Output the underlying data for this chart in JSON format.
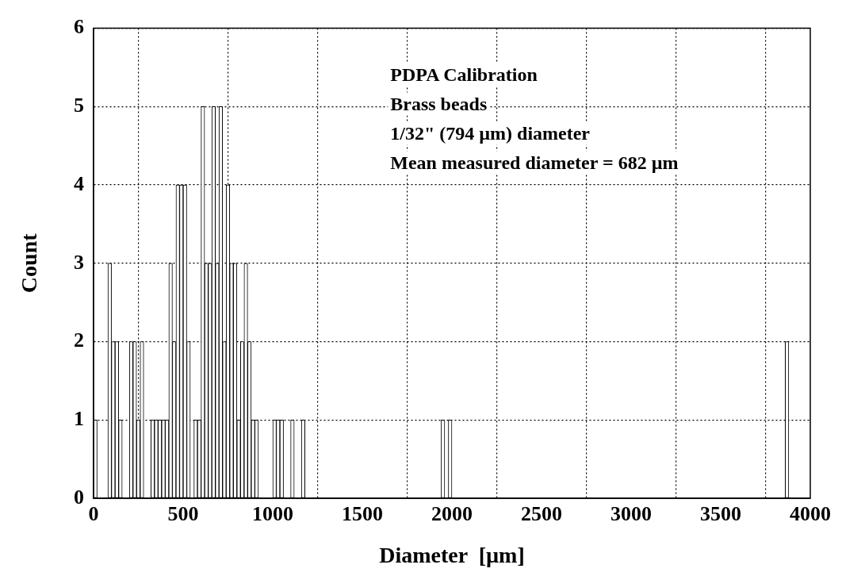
{
  "chart_data": {
    "type": "histogram",
    "xlabel": "Diameter  [µm]",
    "ylabel": "Count",
    "annotations": [
      "PDPA Calibration",
      "Brass beads",
      "1/32\" (794 µm) diameter",
      "Mean measured diameter = 682 µm"
    ],
    "bins": [
      0,
      20,
      40,
      60,
      80,
      100,
      120,
      140,
      160,
      180,
      200,
      220,
      240,
      260,
      280,
      300,
      320,
      340,
      360,
      380,
      400,
      420,
      440,
      460,
      480,
      500,
      520,
      540,
      560,
      580,
      600,
      620,
      640,
      660,
      680,
      700,
      720,
      740,
      760,
      780,
      800,
      820,
      840,
      860,
      880,
      900,
      920,
      940,
      960,
      980,
      1000,
      1020,
      1040,
      1060,
      1080,
      1100,
      1120,
      1140,
      1160,
      1180,
      1200,
      1220,
      1240,
      1260,
      1280,
      1300,
      1320,
      1340,
      1360,
      1380,
      1400,
      1420,
      1440,
      1460,
      1480,
      1500,
      1520,
      1540,
      1560,
      1580,
      1600,
      1620,
      1640,
      1660,
      1680,
      1700,
      1720,
      1740,
      1760,
      1780,
      1800,
      1820,
      1840,
      1860,
      1880,
      1900,
      1920,
      1940,
      1960,
      1980,
      2000,
      2020,
      2040,
      2060,
      2080,
      2100,
      2120,
      2140,
      2160,
      2180,
      2200,
      2220,
      2240,
      2260,
      2280,
      2300,
      2320,
      2340,
      2360,
      2380,
      2400,
      2420,
      2440,
      2460,
      2480,
      2500,
      2520,
      2540,
      2560,
      2580,
      2600,
      2620,
      2640,
      2660,
      2680,
      2700,
      2720,
      2740,
      2760,
      2780,
      2800,
      2820,
      2840,
      2860,
      2880,
      2900,
      2920,
      2940,
      2960,
      2980,
      3000,
      3020,
      3040,
      3060,
      3080,
      3100,
      3120,
      3140,
      3160,
      3180,
      3200,
      3220,
      3240,
      3260,
      3280,
      3300,
      3320,
      3340,
      3360,
      3380,
      3400,
      3420,
      3440,
      3460,
      3480,
      3500,
      3520,
      3540,
      3560,
      3580,
      3600,
      3620,
      3640,
      3660,
      3680,
      3700,
      3720,
      3740,
      3760,
      3780,
      3800,
      3820,
      3840,
      3860,
      3880,
      3900,
      3920,
      3940,
      3960,
      3980,
      4000
    ],
    "values": [
      1,
      0,
      0,
      0,
      3,
      2,
      2,
      1,
      0,
      0,
      2,
      2,
      1,
      2,
      0,
      0,
      1,
      1,
      1,
      1,
      1,
      3,
      2,
      4,
      4,
      4,
      2,
      0,
      1,
      1,
      5,
      3,
      3,
      5,
      3,
      5,
      2,
      4,
      3,
      3,
      1,
      2,
      3,
      2,
      1,
      1,
      0,
      0,
      0,
      0,
      1,
      1,
      1,
      0,
      0,
      1,
      0,
      0,
      1,
      0,
      0,
      0,
      0,
      0,
      0,
      0,
      0,
      0,
      0,
      0,
      0,
      0,
      0,
      0,
      0,
      0,
      0,
      0,
      0,
      0,
      0,
      0,
      0,
      0,
      0,
      0,
      0,
      0,
      0,
      0,
      0,
      0,
      0,
      0,
      0,
      0,
      0,
      1,
      0,
      1,
      0,
      0,
      0,
      0,
      0,
      0,
      0,
      0,
      0,
      0,
      0,
      0,
      0,
      0,
      0,
      0,
      0,
      0,
      0,
      0,
      0,
      0,
      0,
      0,
      0,
      0,
      0,
      0,
      0,
      0,
      0,
      0,
      0,
      0,
      0,
      0,
      0,
      0,
      0,
      0,
      0,
      0,
      0,
      0,
      0,
      0,
      0,
      0,
      0,
      0,
      0,
      0,
      0,
      0,
      0,
      0,
      0,
      0,
      0,
      0,
      0,
      0,
      0,
      0,
      0,
      0,
      0,
      0,
      0,
      0,
      0,
      0,
      0,
      0,
      0,
      0,
      0,
      0,
      0,
      0,
      0,
      0,
      0,
      0,
      0,
      0,
      0,
      0,
      0,
      0,
      0,
      0,
      0,
      2,
      0,
      0,
      0,
      0,
      0,
      0
    ],
    "color": "#ffffff",
    "xlim": [
      0,
      4000
    ],
    "xticks": [
      0,
      500,
      1000,
      1500,
      2000,
      2500,
      3000,
      3500,
      4000
    ],
    "ylim": [
      0,
      6
    ],
    "yticks": [
      0,
      1,
      2,
      3,
      4,
      5,
      6
    ],
    "grid": true,
    "legend": false
  }
}
